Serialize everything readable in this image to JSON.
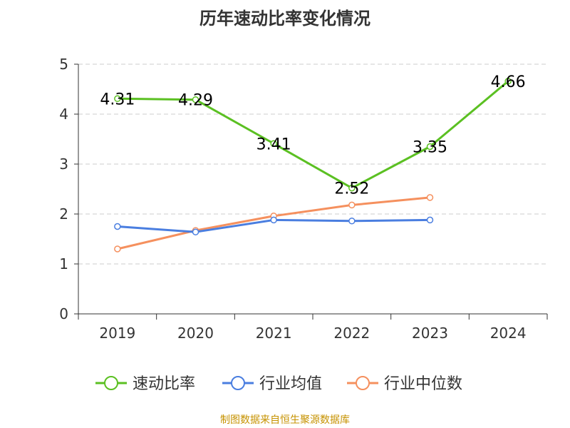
{
  "chart_data": {
    "type": "line",
    "title": "历年速动比率变化情况",
    "categories": [
      "2019",
      "2020",
      "2021",
      "2022",
      "2023",
      "2024"
    ],
    "ylim": [
      0,
      5
    ],
    "yticks": [
      0,
      1,
      2,
      3,
      4,
      5
    ],
    "grid": true,
    "legend_position": "bottom",
    "series": [
      {
        "name": "速动比率",
        "color": "#5bc022",
        "values": [
          4.31,
          4.29,
          3.41,
          2.52,
          3.35,
          4.66
        ],
        "labels": [
          "4.31",
          "4.29",
          "3.41",
          "2.52",
          "3.35",
          "4.66"
        ]
      },
      {
        "name": "行业均值",
        "color": "#4a7ee0",
        "values": [
          1.75,
          1.64,
          1.88,
          1.86,
          1.88,
          null
        ]
      },
      {
        "name": "行业中位数",
        "color": "#f5905e",
        "values": [
          1.3,
          1.67,
          1.96,
          2.18,
          2.33,
          null
        ]
      }
    ]
  },
  "footer": {
    "source": "制图数据来自恒生聚源数据库"
  }
}
